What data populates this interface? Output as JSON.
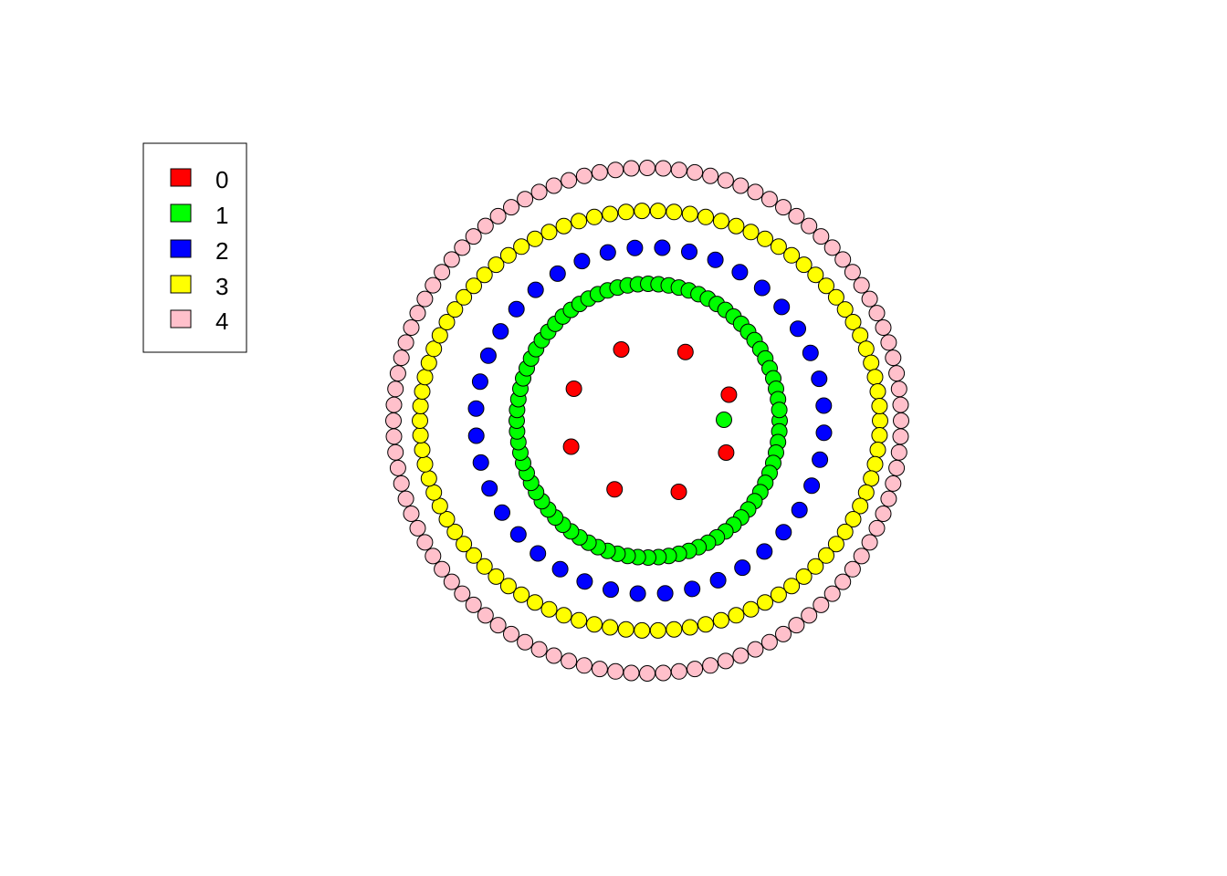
{
  "legend": {
    "entries": [
      {
        "label": "0",
        "color": "#FF0000"
      },
      {
        "label": "1",
        "color": "#00FF00"
      },
      {
        "label": "2",
        "color": "#0000FF"
      },
      {
        "label": "3",
        "color": "#FFFF00"
      },
      {
        "label": "4",
        "color": "#FFC0CB"
      }
    ]
  },
  "groups": [
    {
      "label": "0",
      "color": "#FF0000",
      "count": 8
    },
    {
      "label": "1",
      "color": "#00FF00",
      "count": 80
    },
    {
      "label": "2",
      "color": "#0000FF",
      "count": 40
    },
    {
      "label": "3",
      "color": "#FFFF00",
      "count": 90
    },
    {
      "label": "4",
      "color": "#FFC0CB",
      "count": 100
    }
  ],
  "outliers": [
    {
      "group": "1"
    }
  ]
}
